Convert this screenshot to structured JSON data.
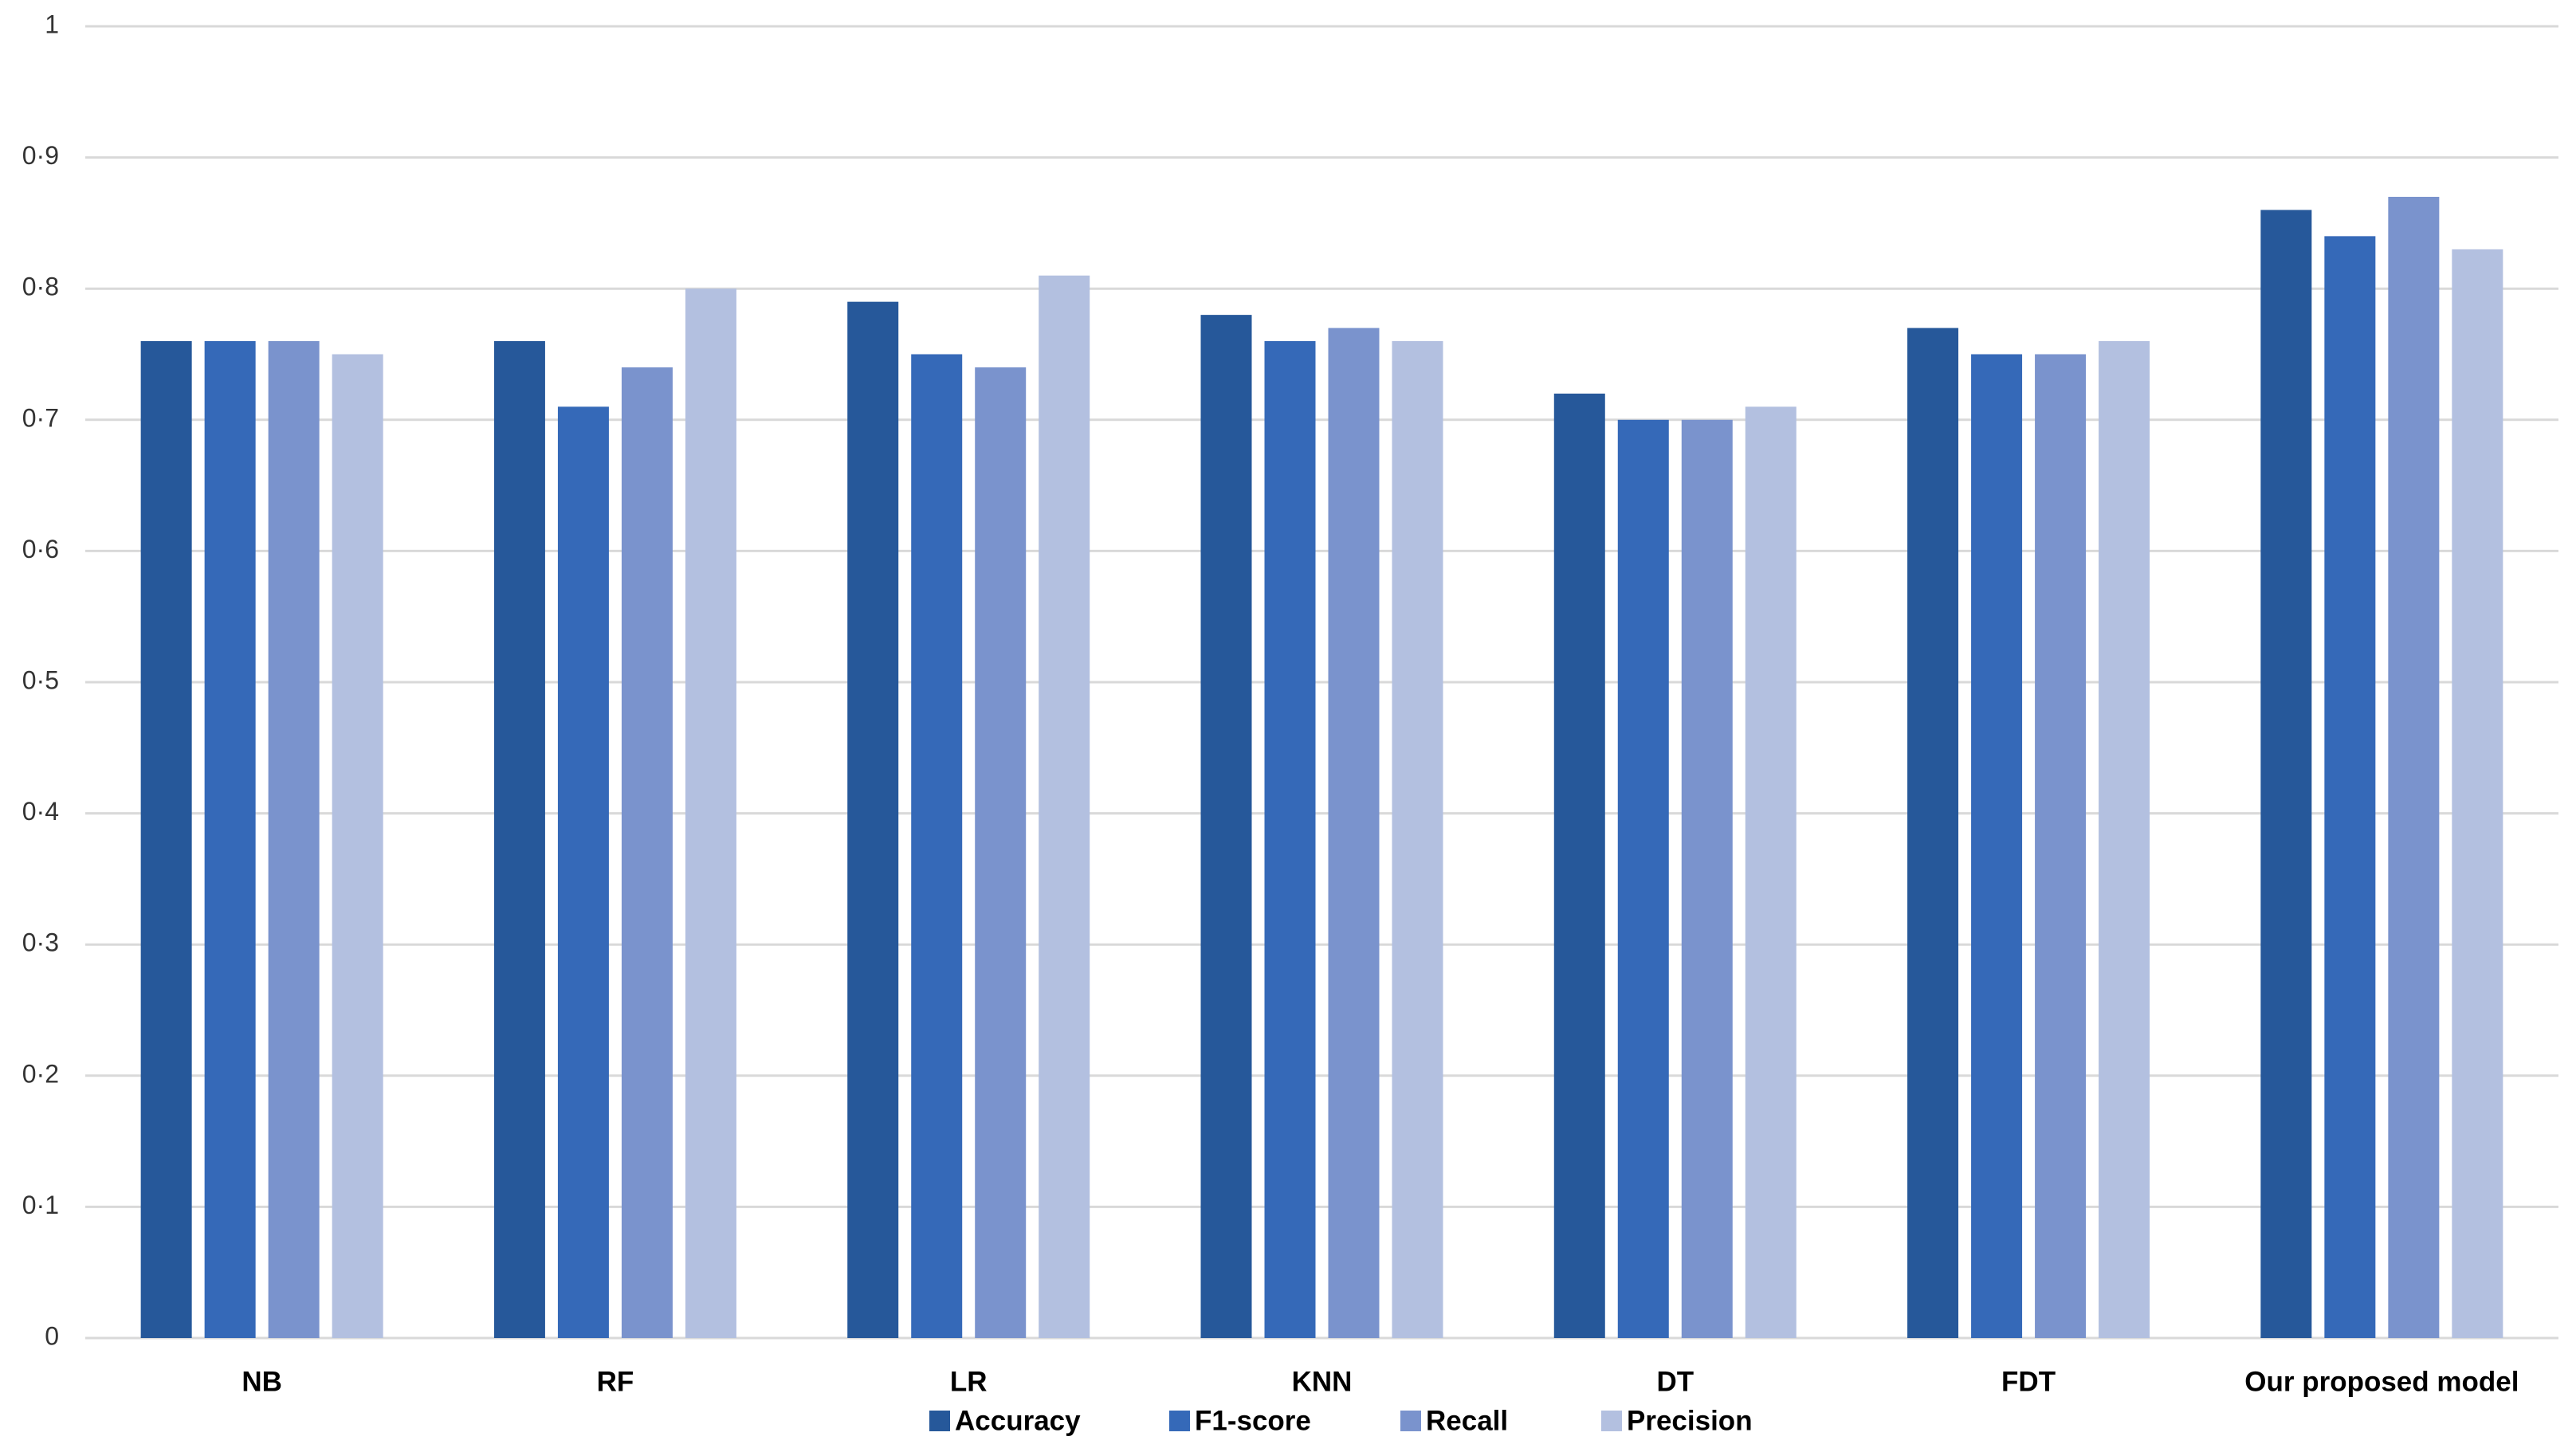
{
  "chart_data": {
    "type": "bar",
    "categories": [
      "NB",
      "RF",
      "LR",
      "KNN",
      "DT",
      "FDT",
      "Our proposed model"
    ],
    "series": [
      {
        "name": "Accuracy",
        "color": "#26589a",
        "values": [
          0.76,
          0.76,
          0.79,
          0.78,
          0.72,
          0.77,
          0.86
        ]
      },
      {
        "name": "F1-score",
        "color": "#3569b8",
        "values": [
          0.76,
          0.71,
          0.75,
          0.76,
          0.7,
          0.75,
          0.84
        ]
      },
      {
        "name": "Recall",
        "color": "#7a93cd",
        "values": [
          0.76,
          0.74,
          0.74,
          0.77,
          0.7,
          0.75,
          0.87
        ]
      },
      {
        "name": "Precision",
        "color": "#b3c0e0",
        "values": [
          0.75,
          0.8,
          0.81,
          0.76,
          0.71,
          0.76,
          0.83
        ]
      }
    ],
    "ylim": [
      0,
      1
    ],
    "yticks": [
      0,
      {
        "value": 0.1,
        "label": "0·1"
      },
      {
        "value": 0.2,
        "label": "0·2"
      },
      {
        "value": 0.3,
        "label": "0·3"
      },
      {
        "value": 0.4,
        "label": "0·4"
      },
      {
        "value": 0.5,
        "label": "0·5"
      },
      {
        "value": 0.6,
        "label": "0·6"
      },
      {
        "value": 0.7,
        "label": "0·7"
      },
      {
        "value": 0.8,
        "label": "0·8"
      },
      {
        "value": 0.9,
        "label": "0·9"
      },
      1
    ],
    "grid": true,
    "legend": "bottom"
  }
}
